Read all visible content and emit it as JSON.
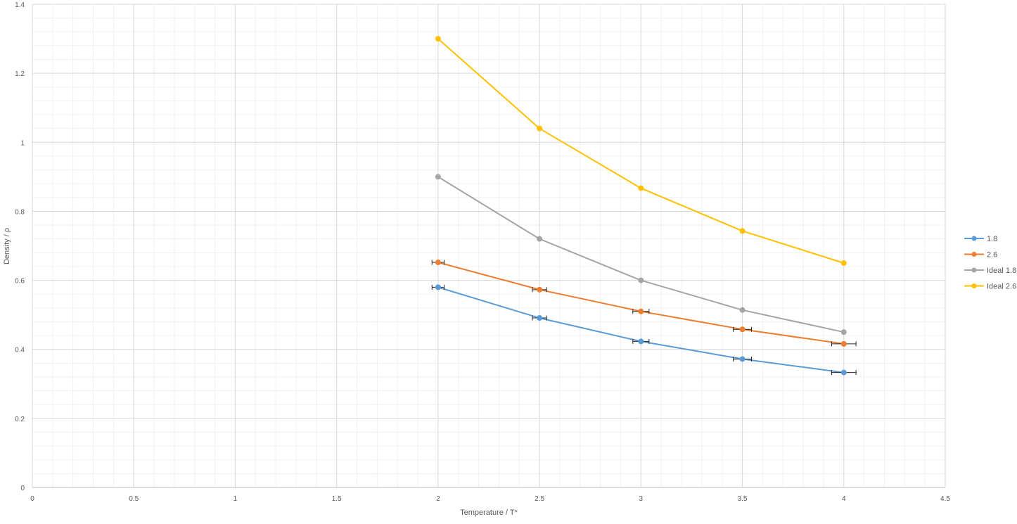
{
  "chart_data": {
    "type": "scatter",
    "title": "",
    "xlabel": "Temperature / T*",
    "ylabel": "Density / ρ",
    "xlim": [
      0,
      4.5
    ],
    "ylim": [
      0,
      1.4
    ],
    "x_ticks": [
      0,
      0.5,
      1,
      1.5,
      2,
      2.5,
      3,
      3.5,
      4,
      4.5
    ],
    "x_tick_labels": [
      "0",
      "0.5",
      "1",
      "1.5",
      "2",
      "2.5",
      "3",
      "3.5",
      "4",
      "4.5"
    ],
    "y_ticks": [
      0,
      0.2,
      0.4,
      0.6,
      0.8,
      1,
      1.2,
      1.4
    ],
    "y_tick_labels": [
      "0",
      "0.2",
      "0.4",
      "0.6",
      "0.8",
      "1",
      "1.2",
      "1.4"
    ],
    "x_minor_step": 0.1,
    "y_minor_step": 0.04,
    "grid": true,
    "legend_position": "right",
    "series": [
      {
        "name": "1.8",
        "color": "#5B9BD5",
        "x": [
          2,
          2.5,
          3,
          3.5,
          4
        ],
        "y": [
          0.58,
          0.491,
          0.423,
          0.372,
          0.333
        ],
        "x_error": [
          0.03,
          0.035,
          0.04,
          0.045,
          0.06
        ]
      },
      {
        "name": "2.6",
        "color": "#ED7D31",
        "x": [
          2,
          2.5,
          3,
          3.5,
          4
        ],
        "y": [
          0.652,
          0.573,
          0.51,
          0.458,
          0.416
        ],
        "x_error": [
          0.03,
          0.035,
          0.04,
          0.045,
          0.06
        ]
      },
      {
        "name": "Ideal 1.8",
        "color": "#A5A5A5",
        "x": [
          2,
          2.5,
          3,
          3.5,
          4
        ],
        "y": [
          0.9,
          0.72,
          0.6,
          0.514,
          0.45
        ]
      },
      {
        "name": "Ideal 2.6",
        "color": "#FFC000",
        "x": [
          2,
          2.5,
          3,
          3.5,
          4
        ],
        "y": [
          1.3,
          1.04,
          0.867,
          0.743,
          0.65
        ]
      }
    ]
  }
}
